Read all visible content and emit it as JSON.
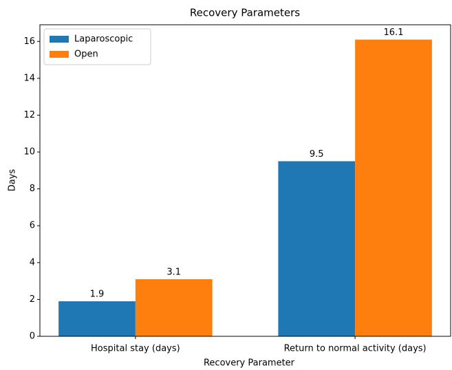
{
  "chart_data": {
    "type": "bar",
    "title": "Recovery Parameters",
    "xlabel": "Recovery Parameter",
    "ylabel": "Days",
    "categories": [
      "Hospital stay (days)",
      "Return to normal activity (days)"
    ],
    "series": [
      {
        "name": "Laparoscopic",
        "color": "#1f77b4",
        "values": [
          1.9,
          9.5
        ]
      },
      {
        "name": "Open",
        "color": "#ff7f0e",
        "values": [
          3.1,
          16.1
        ]
      }
    ],
    "ylim": [
      0,
      16.905
    ],
    "yticks": [
      0,
      2,
      4,
      6,
      8,
      10,
      12,
      14,
      16
    ],
    "legend": "upper left",
    "grid": false
  }
}
